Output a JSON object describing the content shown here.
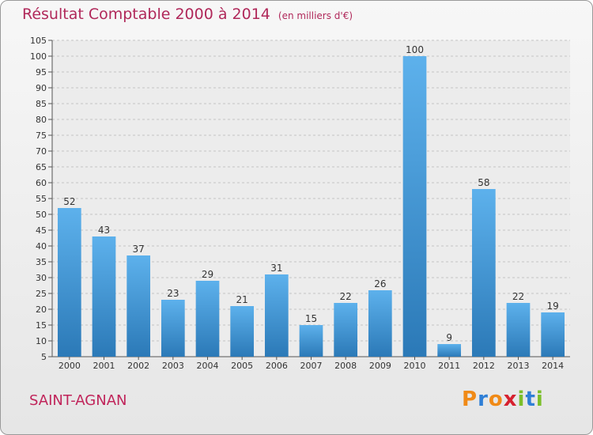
{
  "title": "Résultat Comptable 2000 à 2014",
  "unit": "(en milliers d'€)",
  "town": "SAINT-AGNAN",
  "logo": {
    "letters": [
      "P",
      "r",
      "o",
      "x",
      "i",
      "t",
      "i"
    ],
    "colors": [
      "#f08a17",
      "#2f7fd6",
      "#f08a17",
      "#d6212f",
      "#7bbf2a",
      "#2f7fd6",
      "#7bbf2a"
    ]
  },
  "colors": {
    "bar_light": "#5db1ec",
    "bar_dark": "#2b79b7",
    "title": "#b0285a"
  },
  "chart_data": {
    "type": "bar",
    "categories": [
      "2000",
      "2001",
      "2002",
      "2003",
      "2004",
      "2005",
      "2006",
      "2007",
      "2008",
      "2009",
      "2010",
      "2011",
      "2012",
      "2013",
      "2014"
    ],
    "values": [
      52,
      43,
      37,
      23,
      29,
      21,
      31,
      15,
      22,
      26,
      100,
      9,
      58,
      22,
      19
    ],
    "ylim": [
      5,
      105
    ],
    "yticks": [
      5,
      10,
      15,
      20,
      25,
      30,
      35,
      40,
      45,
      50,
      55,
      60,
      65,
      70,
      75,
      80,
      85,
      90,
      95,
      100,
      105
    ],
    "grid": true,
    "title": "Résultat Comptable 2000 à 2014",
    "xlabel": "",
    "ylabel": ""
  }
}
